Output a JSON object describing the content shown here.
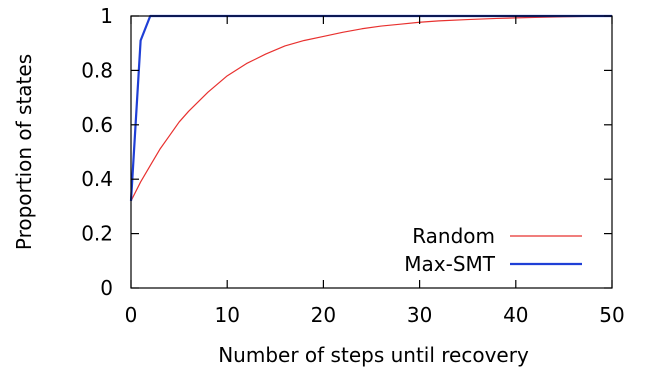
{
  "chart_data": {
    "type": "line",
    "title": "",
    "xlabel": "Number of steps until recovery",
    "ylabel": "Proportion of states",
    "xlim": [
      0,
      50
    ],
    "ylim": [
      0,
      1
    ],
    "x_ticks": [
      0,
      10,
      20,
      30,
      40,
      50
    ],
    "y_ticks": [
      0,
      0.2,
      0.4,
      0.6,
      0.8,
      1
    ],
    "x_tick_labels": [
      "0",
      "10",
      "20",
      "30",
      "40",
      "50"
    ],
    "y_tick_labels": [
      "0",
      "0.2",
      "0.4",
      "0.6",
      "0.8",
      "1"
    ],
    "grid": false,
    "legend_position": "bottom-right",
    "series": [
      {
        "name": "Random",
        "color": "#e8312f",
        "x": [
          0,
          1,
          2,
          3,
          4,
          5,
          6,
          8,
          10,
          12,
          14,
          16,
          18,
          20,
          22,
          24,
          26,
          28,
          30,
          32,
          35,
          38,
          40,
          42,
          45,
          48,
          50
        ],
        "y": [
          0.32,
          0.39,
          0.45,
          0.51,
          0.56,
          0.61,
          0.65,
          0.72,
          0.78,
          0.825,
          0.86,
          0.89,
          0.91,
          0.925,
          0.94,
          0.953,
          0.963,
          0.97,
          0.977,
          0.982,
          0.987,
          0.991,
          0.993,
          0.995,
          0.997,
          0.999,
          1.0
        ]
      },
      {
        "name": "Max-SMT",
        "color": "#1f3fd6",
        "x": [
          0,
          1,
          2,
          50
        ],
        "y": [
          0.32,
          0.91,
          1.0,
          1.0
        ]
      }
    ]
  }
}
